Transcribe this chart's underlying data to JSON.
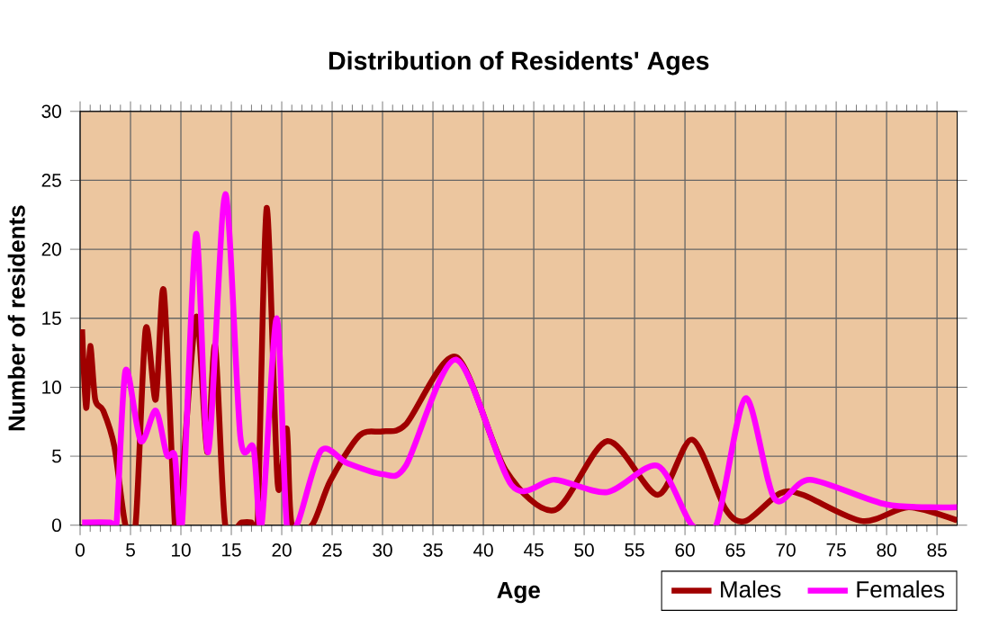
{
  "chart_data": {
    "type": "line",
    "title": "Distribution of Residents' Ages",
    "xlabel": "Age",
    "ylabel": "Number of residents",
    "xlim": [
      0,
      87
    ],
    "ylim": [
      0,
      30
    ],
    "xticks": [
      0,
      5,
      10,
      15,
      20,
      25,
      30,
      35,
      40,
      45,
      50,
      55,
      60,
      65,
      70,
      75,
      80,
      85
    ],
    "yticks": [
      0,
      5,
      10,
      15,
      20,
      25,
      30
    ],
    "grid": true,
    "legend": "bottom right",
    "marker": "none",
    "line_style": "solid",
    "series": [
      {
        "name": "Males",
        "color": "#a00000",
        "x": [
          0.2,
          0.6,
          1,
          1.5,
          2.3,
          3.4,
          4.5,
          5.5,
          6.5,
          7.5,
          8.3,
          9.4,
          9.8,
          11.5,
          12.6,
          13.4,
          14.4,
          16,
          17,
          17.6,
          18.5,
          19.6,
          20.5,
          21,
          23,
          24.8,
          27.7,
          30,
          32.3,
          37.3,
          42.2,
          47.1,
          52.3,
          57.3,
          60.7,
          64,
          66,
          69.4,
          71.7,
          77.6,
          82.2,
          87
        ],
        "values": [
          14.2,
          8.5,
          13,
          9.1,
          8.3,
          5.7,
          0,
          0,
          14.2,
          9.1,
          17,
          0,
          0,
          15.1,
          5.3,
          13,
          0,
          0.2,
          0.2,
          0,
          23,
          3,
          7,
          0,
          0,
          3.2,
          6.5,
          6.8,
          7.3,
          12.2,
          4,
          1.1,
          6.1,
          2.2,
          6.2,
          1.2,
          0.3,
          2.3,
          2.2,
          0.3,
          1.3,
          0.35
        ]
      },
      {
        "name": "Females",
        "color": "#ff00ff",
        "x": [
          0.2,
          3,
          3.6,
          4.5,
          6,
          7.5,
          8.6,
          9.4,
          10.1,
          11.5,
          12.7,
          14.4,
          15.9,
          17.2,
          18,
          19.5,
          20.5,
          21.6,
          23.9,
          26.5,
          30,
          32.3,
          37.3,
          42.8,
          47.1,
          52.3,
          57.3,
          60.7,
          63.1,
          66,
          68.9,
          72.4,
          80,
          87
        ],
        "values": [
          0.2,
          0.2,
          0,
          11.2,
          6.1,
          8.3,
          5.1,
          5,
          0,
          21.1,
          5.3,
          24,
          6.4,
          5.6,
          0,
          15,
          0,
          0.2,
          5.4,
          4.5,
          3.7,
          4.3,
          12,
          2.9,
          3.3,
          2.4,
          4.3,
          0,
          0,
          9.2,
          1.9,
          3.3,
          1.5,
          1.3
        ]
      }
    ]
  }
}
